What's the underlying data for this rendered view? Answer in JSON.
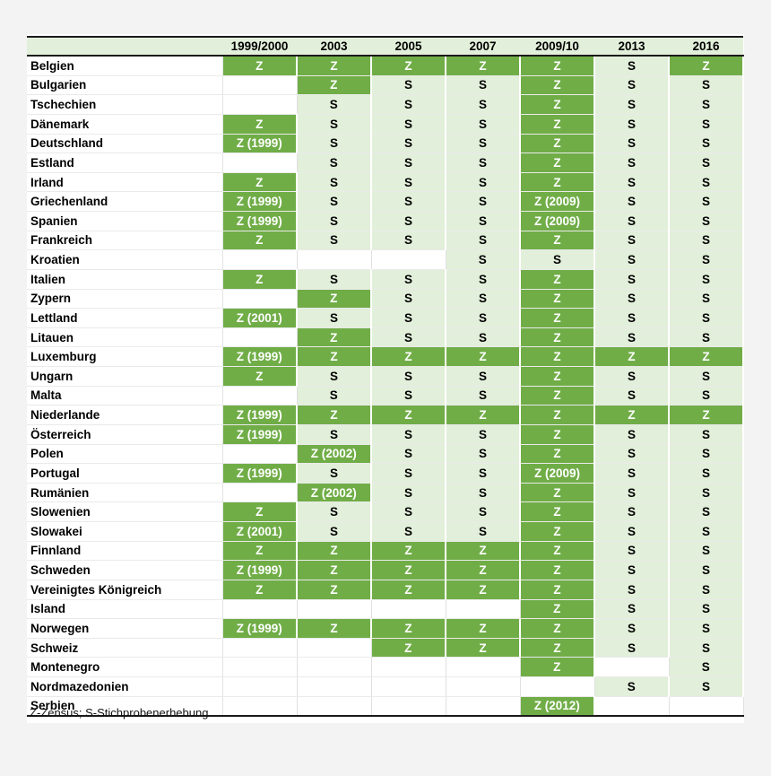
{
  "table": {
    "headers": [
      "1999/2000",
      "2003",
      "2005",
      "2007",
      "2009/10",
      "2013",
      "2016"
    ],
    "rows": [
      {
        "country": "Belgien",
        "cells": [
          "Z",
          "Z",
          "Z",
          "Z",
          "Z",
          "S",
          "Z"
        ]
      },
      {
        "country": "Bulgarien",
        "cells": [
          "",
          "Z",
          "S",
          "S",
          "Z",
          "S",
          "S"
        ]
      },
      {
        "country": "Tschechien",
        "cells": [
          "",
          "S",
          "S",
          "S",
          "Z",
          "S",
          "S"
        ]
      },
      {
        "country": "Dänemark",
        "cells": [
          "Z",
          "S",
          "S",
          "S",
          "Z",
          "S",
          "S"
        ]
      },
      {
        "country": "Deutschland",
        "cells": [
          "Z (1999)",
          "S",
          "S",
          "S",
          "Z",
          "S",
          "S"
        ]
      },
      {
        "country": "Estland",
        "cells": [
          "",
          "S",
          "S",
          "S",
          "Z",
          "S",
          "S"
        ]
      },
      {
        "country": "Irland",
        "cells": [
          "Z",
          "S",
          "S",
          "S",
          "Z",
          "S",
          "S"
        ]
      },
      {
        "country": "Griechenland",
        "cells": [
          "Z (1999)",
          "S",
          "S",
          "S",
          "Z (2009)",
          "S",
          "S"
        ]
      },
      {
        "country": "Spanien",
        "cells": [
          "Z (1999)",
          "S",
          "S",
          "S",
          "Z (2009)",
          "S",
          "S"
        ]
      },
      {
        "country": "Frankreich",
        "cells": [
          "Z",
          "S",
          "S",
          "S",
          "Z",
          "S",
          "S"
        ]
      },
      {
        "country": "Kroatien",
        "cells": [
          "",
          "",
          "",
          "S",
          "S",
          "S",
          "S"
        ]
      },
      {
        "country": "Italien",
        "cells": [
          "Z",
          "S",
          "S",
          "S",
          "Z",
          "S",
          "S"
        ]
      },
      {
        "country": "Zypern",
        "cells": [
          "",
          "Z",
          "S",
          "S",
          "Z",
          "S",
          "S"
        ]
      },
      {
        "country": "Lettland",
        "cells": [
          "Z (2001)",
          "S",
          "S",
          "S",
          "Z",
          "S",
          "S"
        ]
      },
      {
        "country": "Litauen",
        "cells": [
          "",
          "Z",
          "S",
          "S",
          "Z",
          "S",
          "S"
        ]
      },
      {
        "country": "Luxemburg",
        "cells": [
          "Z (1999)",
          "Z",
          "Z",
          "Z",
          "Z",
          "Z",
          "Z"
        ]
      },
      {
        "country": "Ungarn",
        "cells": [
          "Z",
          "S",
          "S",
          "S",
          "Z",
          "S",
          "S"
        ]
      },
      {
        "country": "Malta",
        "cells": [
          "",
          "S",
          "S",
          "S",
          "Z",
          "S",
          "S"
        ]
      },
      {
        "country": "Niederlande",
        "cells": [
          "Z (1999)",
          "Z",
          "Z",
          "Z",
          "Z",
          "Z",
          "Z"
        ]
      },
      {
        "country": "Österreich",
        "cells": [
          "Z (1999)",
          "S",
          "S",
          "S",
          "Z",
          "S",
          "S"
        ]
      },
      {
        "country": "Polen",
        "cells": [
          "",
          "Z (2002)",
          "S",
          "S",
          "Z",
          "S",
          "S"
        ]
      },
      {
        "country": "Portugal",
        "cells": [
          "Z (1999)",
          "S",
          "S",
          "S",
          "Z (2009)",
          "S",
          "S"
        ]
      },
      {
        "country": "Rumänien",
        "cells": [
          "",
          "Z (2002)",
          "S",
          "S",
          "Z",
          "S",
          "S"
        ]
      },
      {
        "country": "Slowenien",
        "cells": [
          "Z",
          "S",
          "S",
          "S",
          "Z",
          "S",
          "S"
        ]
      },
      {
        "country": "Slowakei",
        "cells": [
          "Z (2001)",
          "S",
          "S",
          "S",
          "Z",
          "S",
          "S"
        ]
      },
      {
        "country": "Finnland",
        "cells": [
          "Z",
          "Z",
          "Z",
          "Z",
          "Z",
          "S",
          "S"
        ]
      },
      {
        "country": "Schweden",
        "cells": [
          "Z (1999)",
          "Z",
          "Z",
          "Z",
          "Z",
          "S",
          "S"
        ]
      },
      {
        "country": "Vereinigtes Königreich",
        "cells": [
          "Z",
          "Z",
          "Z",
          "Z",
          "Z",
          "S",
          "S"
        ]
      },
      {
        "country": "Island",
        "cells": [
          "",
          "",
          "",
          "",
          "Z",
          "S",
          "S"
        ]
      },
      {
        "country": "Norwegen",
        "cells": [
          "Z (1999)",
          "Z",
          "Z",
          "Z",
          "Z",
          "S",
          "S"
        ]
      },
      {
        "country": "Schweiz",
        "cells": [
          "",
          "",
          "Z",
          "Z",
          "Z",
          "S",
          "S"
        ]
      },
      {
        "country": "Montenegro",
        "cells": [
          "",
          "",
          "",
          "",
          "Z",
          "",
          "S"
        ]
      },
      {
        "country": "Nordmazedonien",
        "cells": [
          "",
          "",
          "",
          "",
          "",
          "S",
          "S"
        ]
      },
      {
        "country": "Serbien",
        "cells": [
          "",
          "",
          "",
          "",
          "Z (2012)",
          "",
          ""
        ]
      }
    ]
  },
  "legend": "Z-Zensus; S-Stichprobenerhebung",
  "colors": {
    "zensus": "#70ad47",
    "stichprobe": "#e2efda",
    "empty": "#ffffff"
  }
}
